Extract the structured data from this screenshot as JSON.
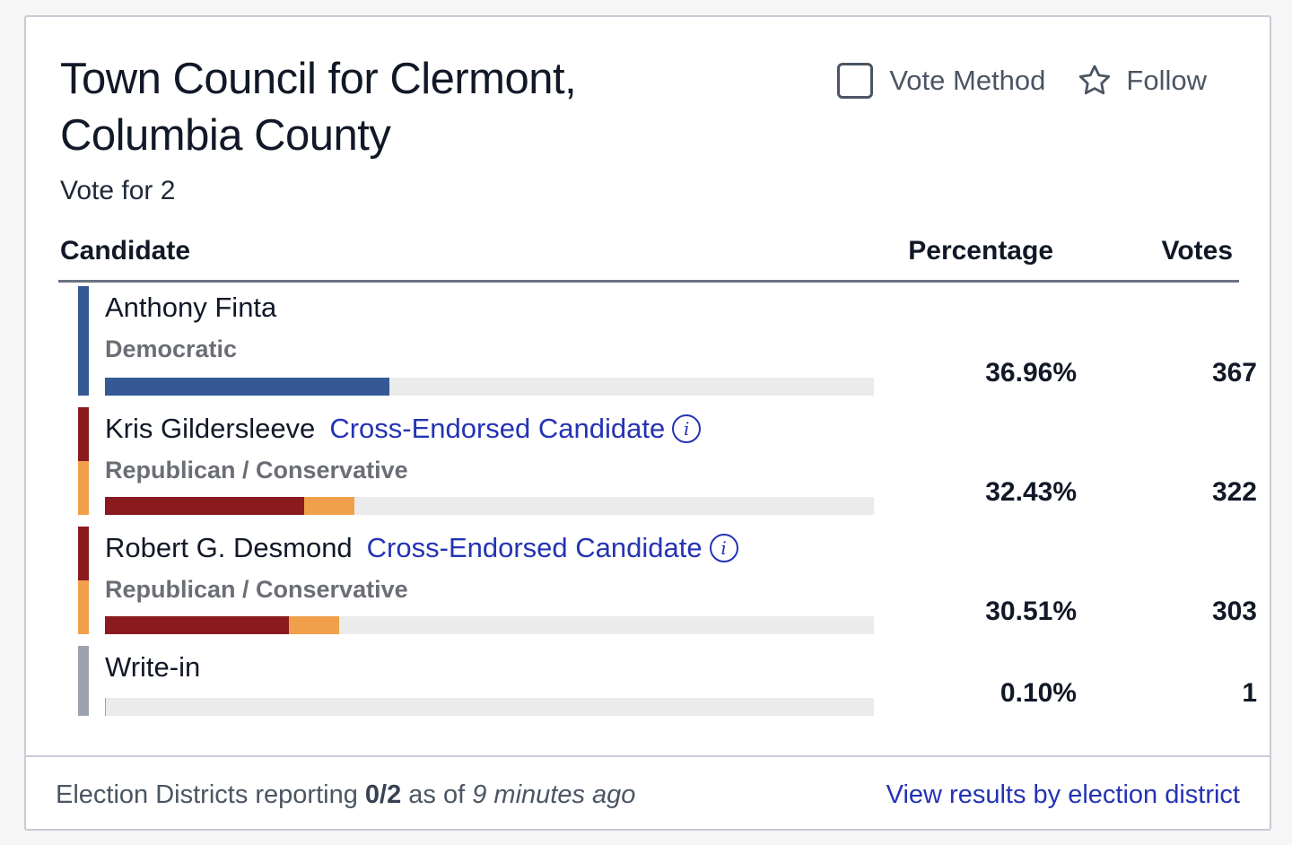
{
  "contest": {
    "title": "Town Council for Clermont, Columbia County",
    "vote_for": "Vote for 2"
  },
  "actions": {
    "vote_method_label": "Vote Method",
    "vote_method_checked": false,
    "follow_label": "Follow"
  },
  "table": {
    "headers": {
      "candidate": "Candidate",
      "percentage": "Percentage",
      "votes": "Votes"
    },
    "candidates": [
      {
        "name": "Anthony Finta",
        "party": "Democratic",
        "cross_endorsed": "",
        "percentage": "36.96%",
        "votes": "367",
        "share": 0.3696,
        "party_colors": [
          "#345995"
        ],
        "party_split": [
          1.0
        ]
      },
      {
        "name": "Kris Gildersleeve",
        "party": "Republican / Conservative",
        "cross_endorsed": "Cross-Endorsed Candidate",
        "percentage": "32.43%",
        "votes": "322",
        "share": 0.3243,
        "party_colors": [
          "#8b1a1f",
          "#f0a04b"
        ],
        "party_split": [
          0.8,
          0.2
        ]
      },
      {
        "name": "Robert G. Desmond",
        "party": "Republican / Conservative",
        "cross_endorsed": "Cross-Endorsed Candidate",
        "percentage": "30.51%",
        "votes": "303",
        "share": 0.3051,
        "party_colors": [
          "#8b1a1f",
          "#f0a04b"
        ],
        "party_split": [
          0.785,
          0.215
        ]
      },
      {
        "name": "Write-in",
        "party": "",
        "cross_endorsed": "",
        "percentage": "0.10%",
        "votes": "1",
        "share": 0.001,
        "party_colors": [
          "#9ca3af"
        ],
        "party_split": [
          1.0
        ]
      }
    ]
  },
  "footer": {
    "status_prefix": "Election Districts reporting",
    "reporting": "0/2",
    "as_of": "as of",
    "time_ago": "9 minutes ago",
    "link_label": "View results by election district"
  },
  "colors": {
    "accent_link": "#2433b4",
    "democratic": "#345995",
    "republican": "#8b1a1f",
    "conservative": "#f0a04b",
    "write_in": "#9ca3af",
    "bar_track": "#ebebec"
  }
}
